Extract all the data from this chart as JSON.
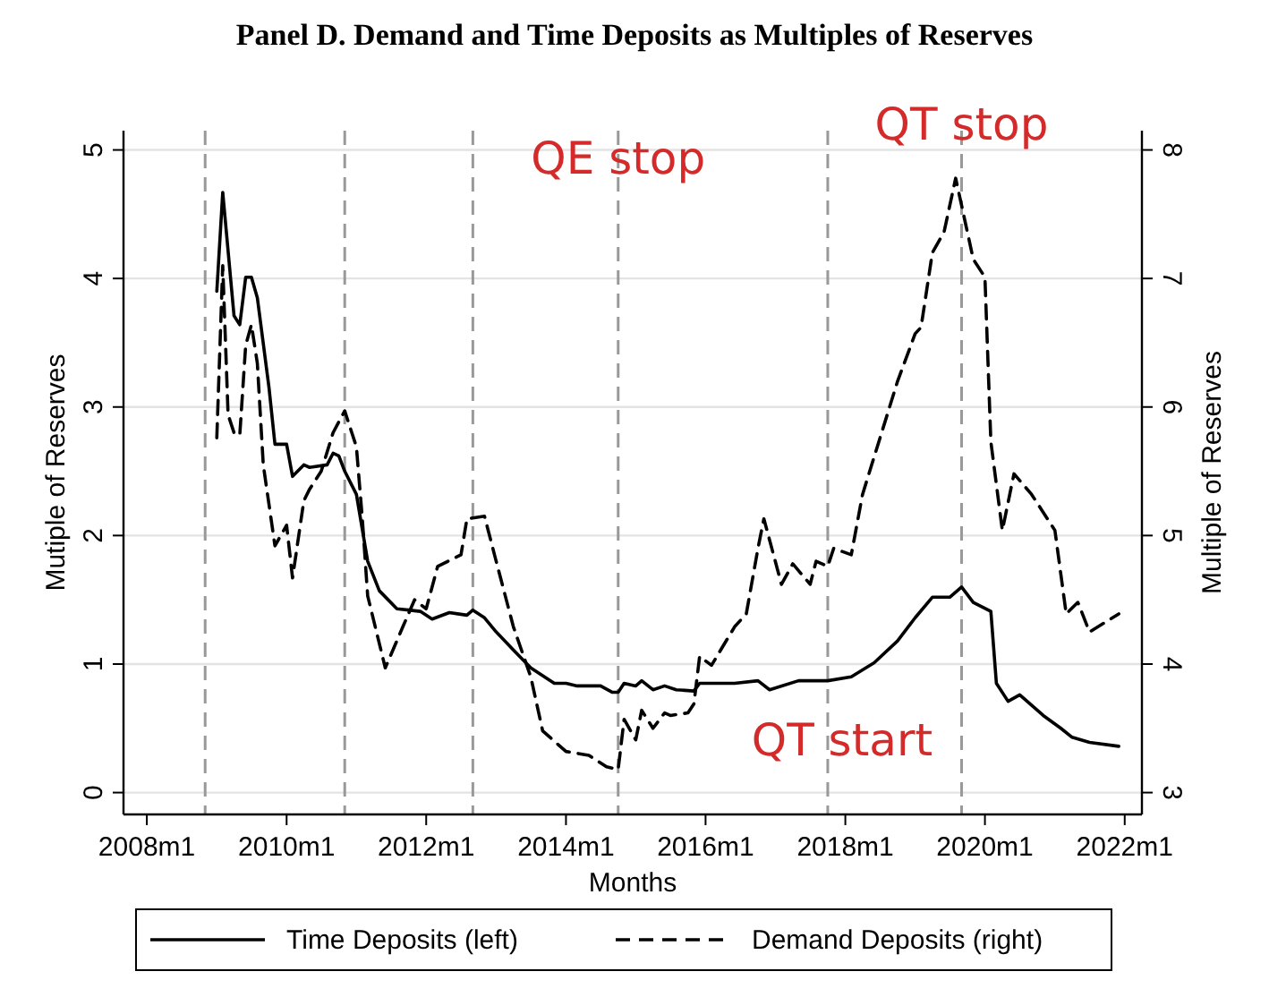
{
  "chart_data": {
    "type": "line",
    "title": "Panel D. Demand and Time Deposits as Multiples of Reserves",
    "xlabel": "Months",
    "ylabel": "Mutiple of Reserves",
    "y2label": "Multiple of Reserves",
    "xlim": [
      "2007-09",
      "2022-04"
    ],
    "xticks": [
      {
        "value": "2008-01",
        "label": "2008m1"
      },
      {
        "value": "2010-01",
        "label": "2010m1"
      },
      {
        "value": "2012-01",
        "label": "2012m1"
      },
      {
        "value": "2014-01",
        "label": "2014m1"
      },
      {
        "value": "2016-01",
        "label": "2016m1"
      },
      {
        "value": "2018-01",
        "label": "2018m1"
      },
      {
        "value": "2020-01",
        "label": "2020m1"
      },
      {
        "value": "2022-01",
        "label": "2022m1"
      }
    ],
    "ylim": [
      -0.17,
      5.15
    ],
    "yticks": [
      0,
      1,
      2,
      3,
      4,
      5
    ],
    "y2lim": [
      2.83,
      8.15
    ],
    "y2ticks": [
      3,
      4,
      5,
      6,
      7,
      8
    ],
    "grid": "y",
    "legend": "bottom",
    "series": [
      {
        "name": "Time Deposits (left)",
        "color": "#000000",
        "line_style": "solid",
        "x": [
          "2009-01",
          "2009-02",
          "2009-04",
          "2009-05",
          "2009-06",
          "2009-07",
          "2009-08",
          "2009-10",
          "2009-11",
          "2010-01",
          "2010-02",
          "2010-04",
          "2010-05",
          "2010-08",
          "2010-09",
          "2010-10",
          "2010-11",
          "2011-01",
          "2011-03",
          "2011-05",
          "2011-08",
          "2011-10",
          "2011-12",
          "2012-02",
          "2012-05",
          "2012-08",
          "2012-09",
          "2012-11",
          "2013-01",
          "2013-04",
          "2013-07",
          "2013-11",
          "2014-01",
          "2014-03",
          "2014-07",
          "2014-09",
          "2014-10",
          "2014-11",
          "2015-01",
          "2015-02",
          "2015-04",
          "2015-06",
          "2015-08",
          "2015-11",
          "2015-12",
          "2016-06",
          "2016-10",
          "2016-12",
          "2017-05",
          "2017-10",
          "2018-02",
          "2018-06",
          "2018-10",
          "2019-01",
          "2019-04",
          "2019-07",
          "2019-09",
          "2019-11",
          "2020-02",
          "2020-03",
          "2020-05",
          "2020-07",
          "2020-11",
          "2021-02",
          "2021-04",
          "2021-07",
          "2021-12"
        ],
        "values": [
          3.9,
          4.67,
          3.71,
          3.64,
          4.01,
          4.01,
          3.85,
          3.15,
          2.71,
          2.71,
          2.46,
          2.55,
          2.53,
          2.55,
          2.64,
          2.62,
          2.5,
          2.32,
          1.8,
          1.57,
          1.43,
          1.42,
          1.41,
          1.35,
          1.4,
          1.38,
          1.42,
          1.36,
          1.25,
          1.11,
          0.97,
          0.85,
          0.85,
          0.83,
          0.83,
          0.78,
          0.78,
          0.85,
          0.83,
          0.87,
          0.8,
          0.83,
          0.8,
          0.79,
          0.85,
          0.85,
          0.87,
          0.8,
          0.87,
          0.87,
          0.9,
          1.01,
          1.18,
          1.36,
          1.52,
          1.52,
          1.6,
          1.48,
          1.41,
          0.85,
          0.71,
          0.76,
          0.6,
          0.5,
          0.43,
          0.39,
          0.36
        ]
      },
      {
        "name": "Demand Deposits (right)",
        "color": "#000000",
        "line_style": "dashed",
        "axis": "y2",
        "x": [
          "2009-01",
          "2009-02",
          "2009-03",
          "2009-04",
          "2009-05",
          "2009-06",
          "2009-07",
          "2009-08",
          "2009-09",
          "2009-11",
          "2010-01",
          "2010-02",
          "2010-04",
          "2010-05",
          "2010-07",
          "2010-09",
          "2010-11",
          "2011-01",
          "2011-02",
          "2011-03",
          "2011-06",
          "2011-09",
          "2011-11",
          "2012-01",
          "2012-03",
          "2012-07",
          "2012-08",
          "2012-11",
          "2013-01",
          "2013-04",
          "2013-07",
          "2013-09",
          "2014-01",
          "2014-05",
          "2014-08",
          "2014-10",
          "2014-11",
          "2015-01",
          "2015-02",
          "2015-04",
          "2015-06",
          "2015-07",
          "2015-10",
          "2015-11",
          "2015-12",
          "2016-02",
          "2016-06",
          "2016-08",
          "2016-10",
          "2016-11",
          "2017-02",
          "2017-04",
          "2017-07",
          "2017-08",
          "2017-10",
          "2017-11",
          "2018-02",
          "2018-04",
          "2018-10",
          "2019-01",
          "2019-02",
          "2019-04",
          "2019-06",
          "2019-08",
          "2019-11",
          "2020-01",
          "2020-02",
          "2020-04",
          "2020-06",
          "2020-09",
          "2021-01",
          "2021-03",
          "2021-05",
          "2021-07",
          "2021-12"
        ],
        "values": [
          5.76,
          7.1,
          5.94,
          5.8,
          5.78,
          6.48,
          6.64,
          6.34,
          5.55,
          4.92,
          5.08,
          4.67,
          5.27,
          5.36,
          5.5,
          5.8,
          5.97,
          5.69,
          5.13,
          4.53,
          3.97,
          4.29,
          4.5,
          4.43,
          4.76,
          4.85,
          5.13,
          5.15,
          4.8,
          4.29,
          3.9,
          3.48,
          3.32,
          3.29,
          3.2,
          3.18,
          3.57,
          3.41,
          3.64,
          3.5,
          3.62,
          3.6,
          3.62,
          3.69,
          4.06,
          3.99,
          4.29,
          4.39,
          4.9,
          5.13,
          4.62,
          4.78,
          4.62,
          4.8,
          4.76,
          4.9,
          4.85,
          5.32,
          6.2,
          6.57,
          6.62,
          7.2,
          7.36,
          7.78,
          7.15,
          7.01,
          5.73,
          5.04,
          5.48,
          5.32,
          5.04,
          4.39,
          4.48,
          4.25,
          4.39
        ]
      }
    ],
    "ref_lines": [
      {
        "axis": "x",
        "value": "2008-11",
        "color": "#999999",
        "line_style": "dashed"
      },
      {
        "axis": "x",
        "value": "2010-11",
        "color": "#999999",
        "line_style": "dashed"
      },
      {
        "axis": "x",
        "value": "2012-09",
        "color": "#999999",
        "line_style": "dashed"
      },
      {
        "axis": "x",
        "value": "2014-10",
        "color": "#999999",
        "line_style": "dashed",
        "label": "QE stop"
      },
      {
        "axis": "x",
        "value": "2017-10",
        "color": "#999999",
        "line_style": "dashed",
        "label": "QT start"
      },
      {
        "axis": "x",
        "value": "2019-09",
        "color": "#999999",
        "line_style": "dashed",
        "label": "QT stop"
      }
    ]
  }
}
